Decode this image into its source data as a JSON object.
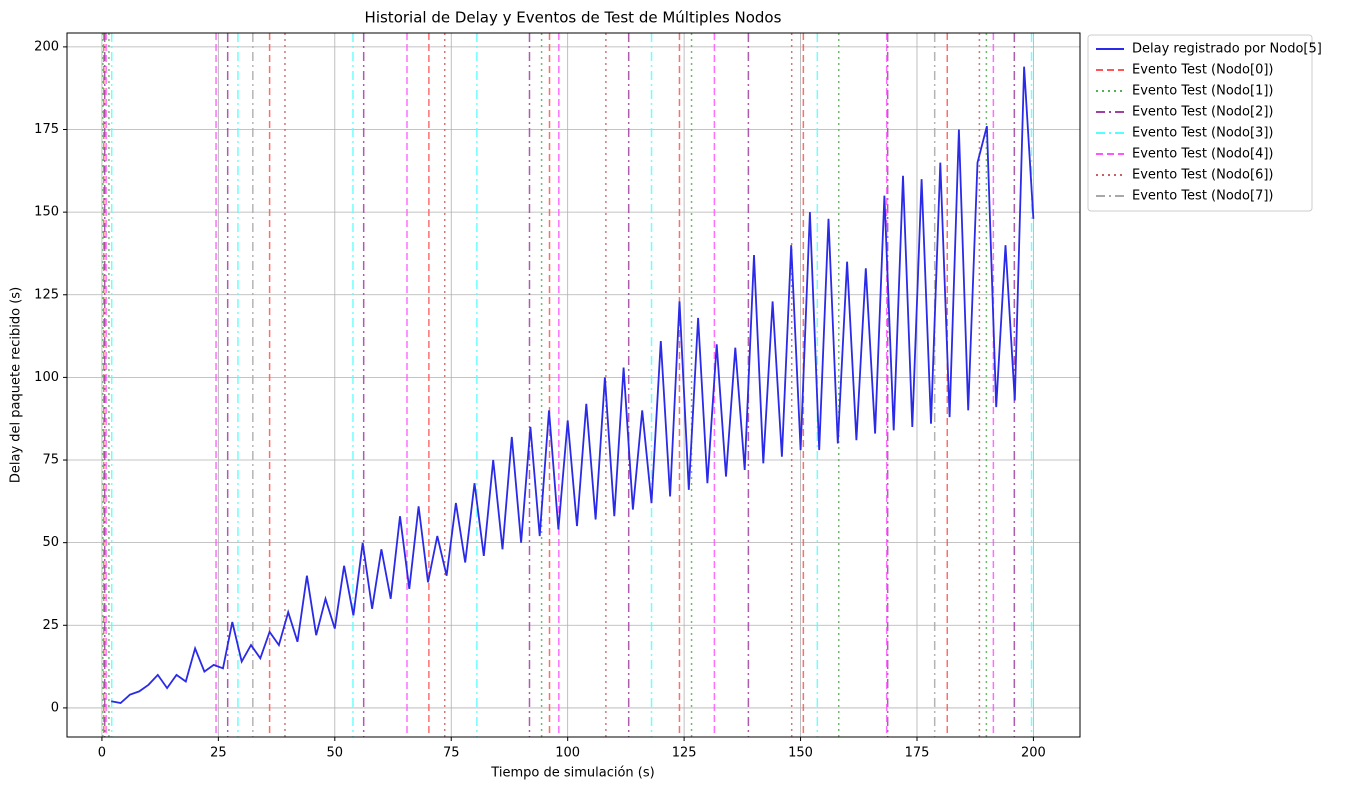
{
  "chart_data": {
    "type": "line",
    "title": "Historial de Delay y Eventos de Test de Múltiples Nodos",
    "x_label": "Tiempo de simulación (s)",
    "y_label": "Delay del paquete recibido (s)",
    "xlim": [
      -7.5,
      210
    ],
    "ylim": [
      -8.8,
      204.2
    ],
    "xticks": [
      0,
      25,
      50,
      75,
      100,
      125,
      150,
      175,
      200
    ],
    "yticks": [
      0,
      25,
      50,
      75,
      100,
      125,
      150,
      175,
      200
    ],
    "grid": true,
    "legend": "outside-upper-right",
    "series": [
      {
        "name": "Delay registrado por Nodo[5]",
        "color": "#2a2ae8",
        "x": [
          2,
          4,
          6,
          8,
          10,
          12,
          14,
          16,
          18,
          20,
          22,
          24,
          26,
          28,
          30,
          32,
          34,
          36,
          38,
          40,
          42,
          44,
          46,
          48,
          50,
          52,
          54,
          56,
          58,
          60,
          62,
          64,
          66,
          68,
          70,
          72,
          74,
          76,
          78,
          80,
          82,
          84,
          86,
          88,
          90,
          92,
          94,
          96,
          98,
          100,
          102,
          104,
          106,
          108,
          110,
          112,
          114,
          116,
          118,
          120,
          122,
          124,
          126,
          128,
          130,
          132,
          134,
          136,
          138,
          140,
          142,
          144,
          146,
          148,
          150,
          152,
          154,
          156,
          158,
          160,
          162,
          164,
          166,
          168,
          170,
          172,
          174,
          176,
          178,
          180,
          182,
          184,
          186,
          188,
          190,
          192,
          194,
          196,
          198,
          200
        ],
        "values": [
          2,
          1.5,
          4,
          5,
          7,
          10,
          6,
          10,
          8,
          18,
          11,
          13,
          12,
          26,
          14,
          19,
          15,
          23,
          19,
          29,
          20,
          40,
          22,
          33,
          24,
          43,
          28,
          50,
          30,
          48,
          33,
          58,
          36,
          61,
          38,
          52,
          40,
          62,
          44,
          68,
          46,
          75,
          48,
          82,
          50,
          85,
          52,
          90,
          54,
          87,
          55,
          92,
          57,
          100,
          58,
          103,
          60,
          90,
          62,
          111,
          64,
          123,
          66,
          118,
          68,
          110,
          70,
          109,
          72,
          137,
          74,
          123,
          76,
          140,
          78,
          150,
          78,
          148,
          80,
          135,
          81,
          133,
          83,
          155,
          84,
          161,
          85,
          160,
          86,
          165,
          88,
          175,
          90,
          165,
          176,
          91,
          140,
          93,
          194,
          148
        ]
      }
    ],
    "events": [
      {
        "name": "Evento Test (Nodo[0])",
        "color": "#ff5555",
        "style": "dashed",
        "x": [
          0.4,
          36,
          70.2,
          96.1,
          124,
          150.6,
          181.5
        ]
      },
      {
        "name": "Evento Test (Nodo[1])",
        "color": "#55b055",
        "style": "dotted",
        "x": [
          0.2,
          1.5,
          94.4,
          126.6,
          158.2,
          189.9
        ]
      },
      {
        "name": "Evento Test (Nodo[2])",
        "color": "#a040a0",
        "style": "dashdot",
        "x": [
          0.6,
          27,
          56.2,
          91.8,
          113.1,
          138.8,
          168.7,
          195.9
        ]
      },
      {
        "name": "Evento Test (Nodo[3])",
        "color": "#55ffff",
        "style": "dashdot",
        "x": [
          2.1,
          29.2,
          53.9,
          80.5,
          118,
          153.6,
          199.6
        ]
      },
      {
        "name": "Evento Test (Nodo[4])",
        "color": "#ff55ff",
        "style": "dashed",
        "x": [
          0.9,
          24.5,
          65.5,
          98.1,
          131.5,
          168.5,
          191.4
        ]
      },
      {
        "name": "Evento Test (Nodo[6])",
        "color": "#c86060",
        "style": "dotted",
        "x": [
          39.3,
          73.6,
          108.2,
          148.1,
          188.4
        ]
      },
      {
        "name": "Evento Test (Nodo[7])",
        "color": "#a8a8a8",
        "style": "dashdot",
        "x": [
          32.4,
          178.8
        ]
      }
    ]
  }
}
